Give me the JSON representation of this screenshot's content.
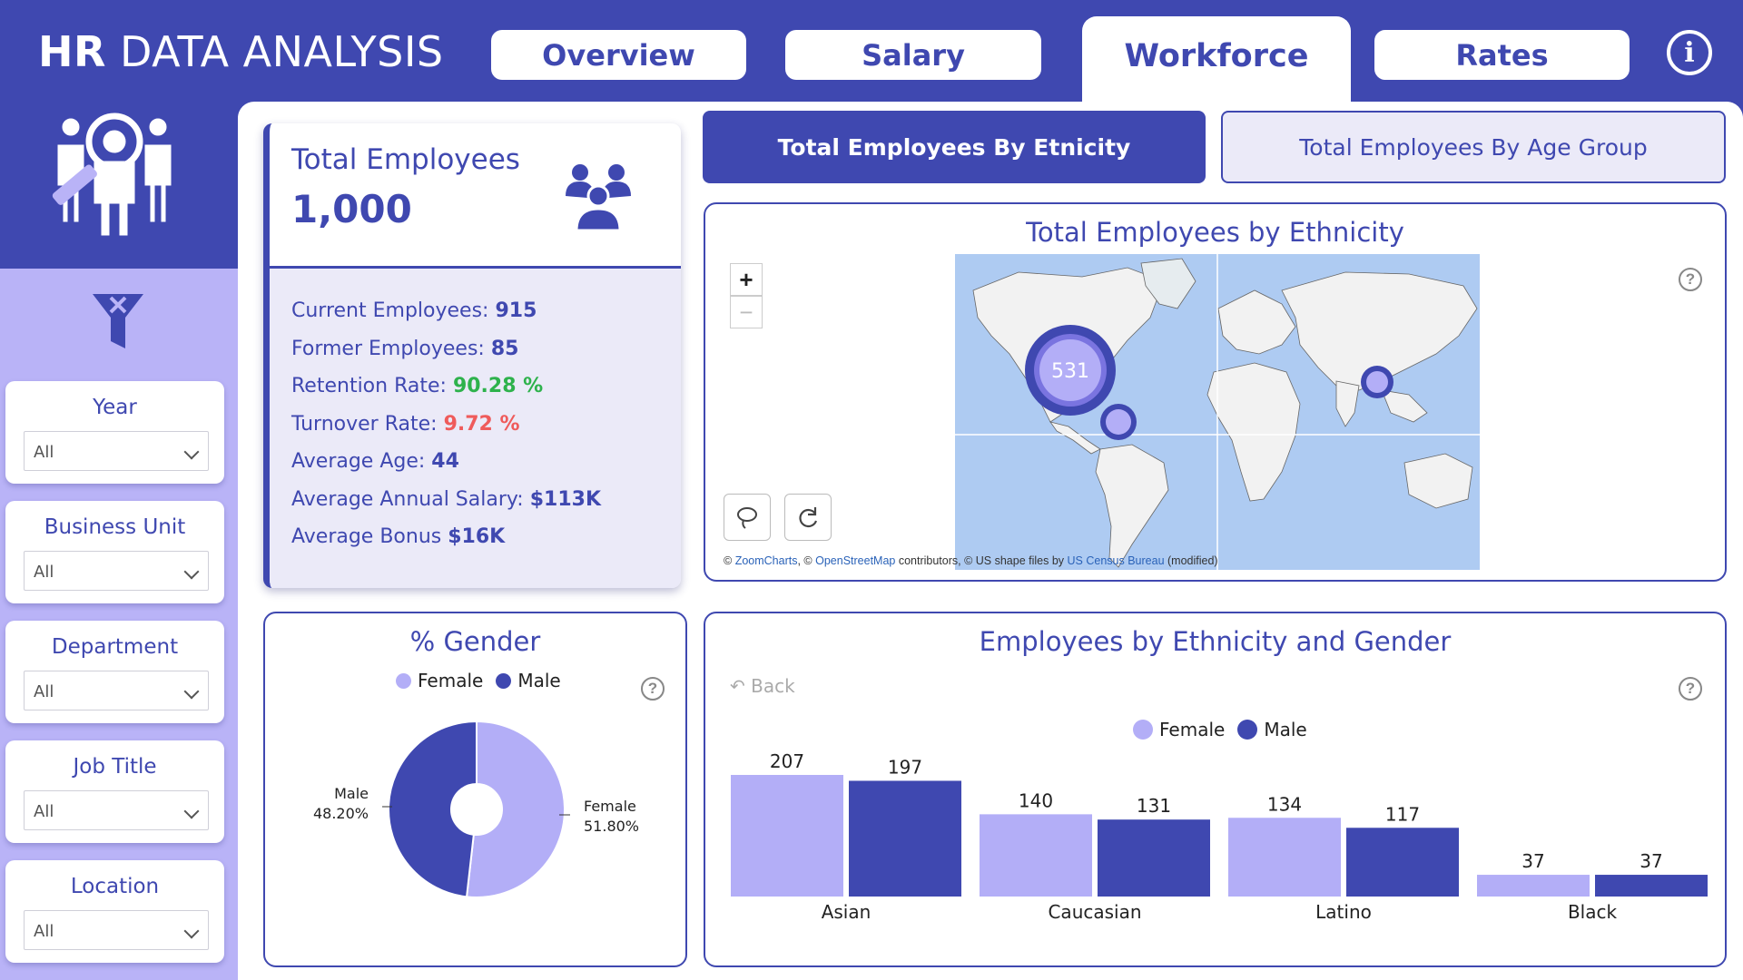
{
  "app": {
    "title_bold": "HR",
    "title_rest": "DATA ANALYSIS",
    "info_icon": "info-icon"
  },
  "tabs": [
    {
      "label": "Overview",
      "active": false
    },
    {
      "label": "Salary",
      "active": false
    },
    {
      "label": "Workforce",
      "active": true
    },
    {
      "label": "Rates",
      "active": false
    }
  ],
  "sidebar": {
    "logo_icon": "hr-team-search-icon",
    "clear_filters_icon": "clear-filter-icon",
    "filters": [
      {
        "label": "Year",
        "value": "All"
      },
      {
        "label": "Business Unit",
        "value": "All"
      },
      {
        "label": "Department",
        "value": "All"
      },
      {
        "label": "Job Title",
        "value": "All"
      },
      {
        "label": "Location",
        "value": "All"
      }
    ]
  },
  "kpi": {
    "title": "Total Employees",
    "value": "1,000",
    "icon": "people-group-icon",
    "rows": [
      {
        "label": "Current Employees:",
        "value": "915",
        "tone": "bold"
      },
      {
        "label": "Former Employees:",
        "value": "85",
        "tone": "bold"
      },
      {
        "label": "Retention Rate:",
        "value": "90.28 %",
        "tone": "green"
      },
      {
        "label": "Turnover Rate:",
        "value": "9.72 %",
        "tone": "red"
      },
      {
        "label": "Average Age:",
        "value": "44",
        "tone": "bold"
      },
      {
        "label": "Average Annual Salary:",
        "value": "$113K",
        "tone": "bold"
      },
      {
        "label": "Average Bonus",
        "value": "$16K",
        "tone": "bold"
      }
    ]
  },
  "view_buttons": {
    "ethnicity": "Total Employees By Etnicity",
    "age_group": "Total Employees By Age Group"
  },
  "map_panel": {
    "title": "Total Employees by Ethnicity",
    "zoom_in": "+",
    "zoom_out": "−",
    "bubble_label": "531",
    "credit_prefix": "© ",
    "credit_zc": "ZoomCharts",
    "credit_mid1": ", © ",
    "credit_osm": "OpenStreetMap",
    "credit_mid2": " contributors, © US shape files by ",
    "credit_census": "US Census Bureau",
    "credit_suffix": " (modified)"
  },
  "gender_panel": {
    "title": "% Gender",
    "legend": [
      "Female",
      "Male"
    ],
    "male_label": "Male",
    "male_pct": "48.20%",
    "female_label": "Female",
    "female_pct": "51.80%"
  },
  "eth_gender_panel": {
    "title": "Employees by Ethnicity and Gender",
    "back_label": "Back",
    "legend": [
      "Female",
      "Male"
    ]
  },
  "colors": {
    "primary": "#3f48b0",
    "female": "#b3aef7",
    "male": "#3f48b0",
    "green": "#2eb24c",
    "red": "#ef5b5b"
  },
  "chart_data": [
    {
      "type": "pie",
      "title": "% Gender",
      "categories": [
        "Female",
        "Male"
      ],
      "values": [
        51.8,
        48.2
      ],
      "unit": "%",
      "legend_position": "top"
    },
    {
      "type": "bar",
      "title": "Employees by Ethnicity and Gender",
      "categories": [
        "Asian",
        "Caucasian",
        "Latino",
        "Black"
      ],
      "series": [
        {
          "name": "Female",
          "values": [
            207,
            140,
            134,
            37
          ]
        },
        {
          "name": "Male",
          "values": [
            197,
            131,
            117,
            37
          ]
        }
      ],
      "legend_position": "top",
      "grid": false
    }
  ]
}
